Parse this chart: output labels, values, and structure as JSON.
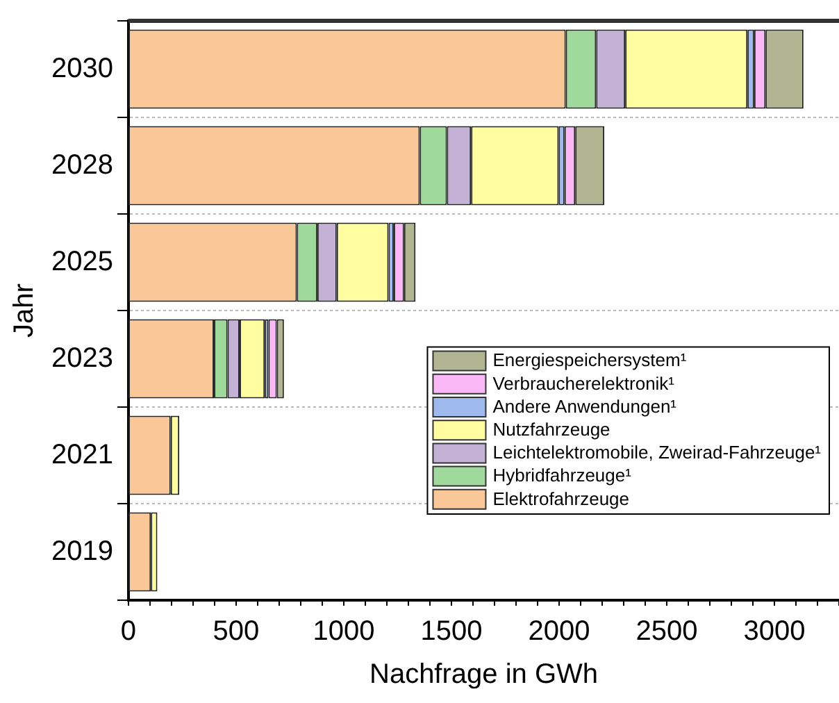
{
  "chart_data": {
    "type": "bar",
    "orientation": "horizontal",
    "stacked": true,
    "xlabel": "Nachfrage in GWh",
    "ylabel": "Jahr",
    "categories": [
      "2030",
      "2028",
      "2025",
      "2023",
      "2021",
      "2019"
    ],
    "series": [
      {
        "name": "Elektrofahrzeuge",
        "color": "#fac898",
        "values": [
          2031,
          1353,
          782,
          397,
          196,
          104
        ]
      },
      {
        "name": "Hybridfahrzeuge¹",
        "color": "#a0d99c",
        "values": [
          141,
          126,
          95,
          63,
          0,
          0
        ]
      },
      {
        "name": "Leichtelektromobile, Zweirad-Fahrzeuge¹",
        "color": "#c3b1d6",
        "values": [
          135,
          112,
          90,
          56,
          0,
          0
        ]
      },
      {
        "name": "Nutzfahrzeuge",
        "color": "#fffda0",
        "values": [
          568,
          407,
          241,
          117,
          40,
          30
        ]
      },
      {
        "name": "Andere Anwendungen¹",
        "color": "#9db9ee",
        "values": [
          31,
          27,
          24,
          17,
          0,
          0
        ]
      },
      {
        "name": "Verbraucherelektronik¹",
        "color": "#fbb8f7",
        "values": [
          53,
          50,
          48,
          39,
          0,
          0
        ]
      },
      {
        "name": "Energiespeichersystem¹",
        "color": "#b1b591",
        "values": [
          176,
          135,
          53,
          33,
          0,
          0
        ]
      }
    ],
    "xlim": [
      0,
      3300
    ],
    "xticks": [
      0,
      500,
      1000,
      1500,
      2000,
      2500,
      3000
    ],
    "grid": "y",
    "legend": "bottom right"
  }
}
